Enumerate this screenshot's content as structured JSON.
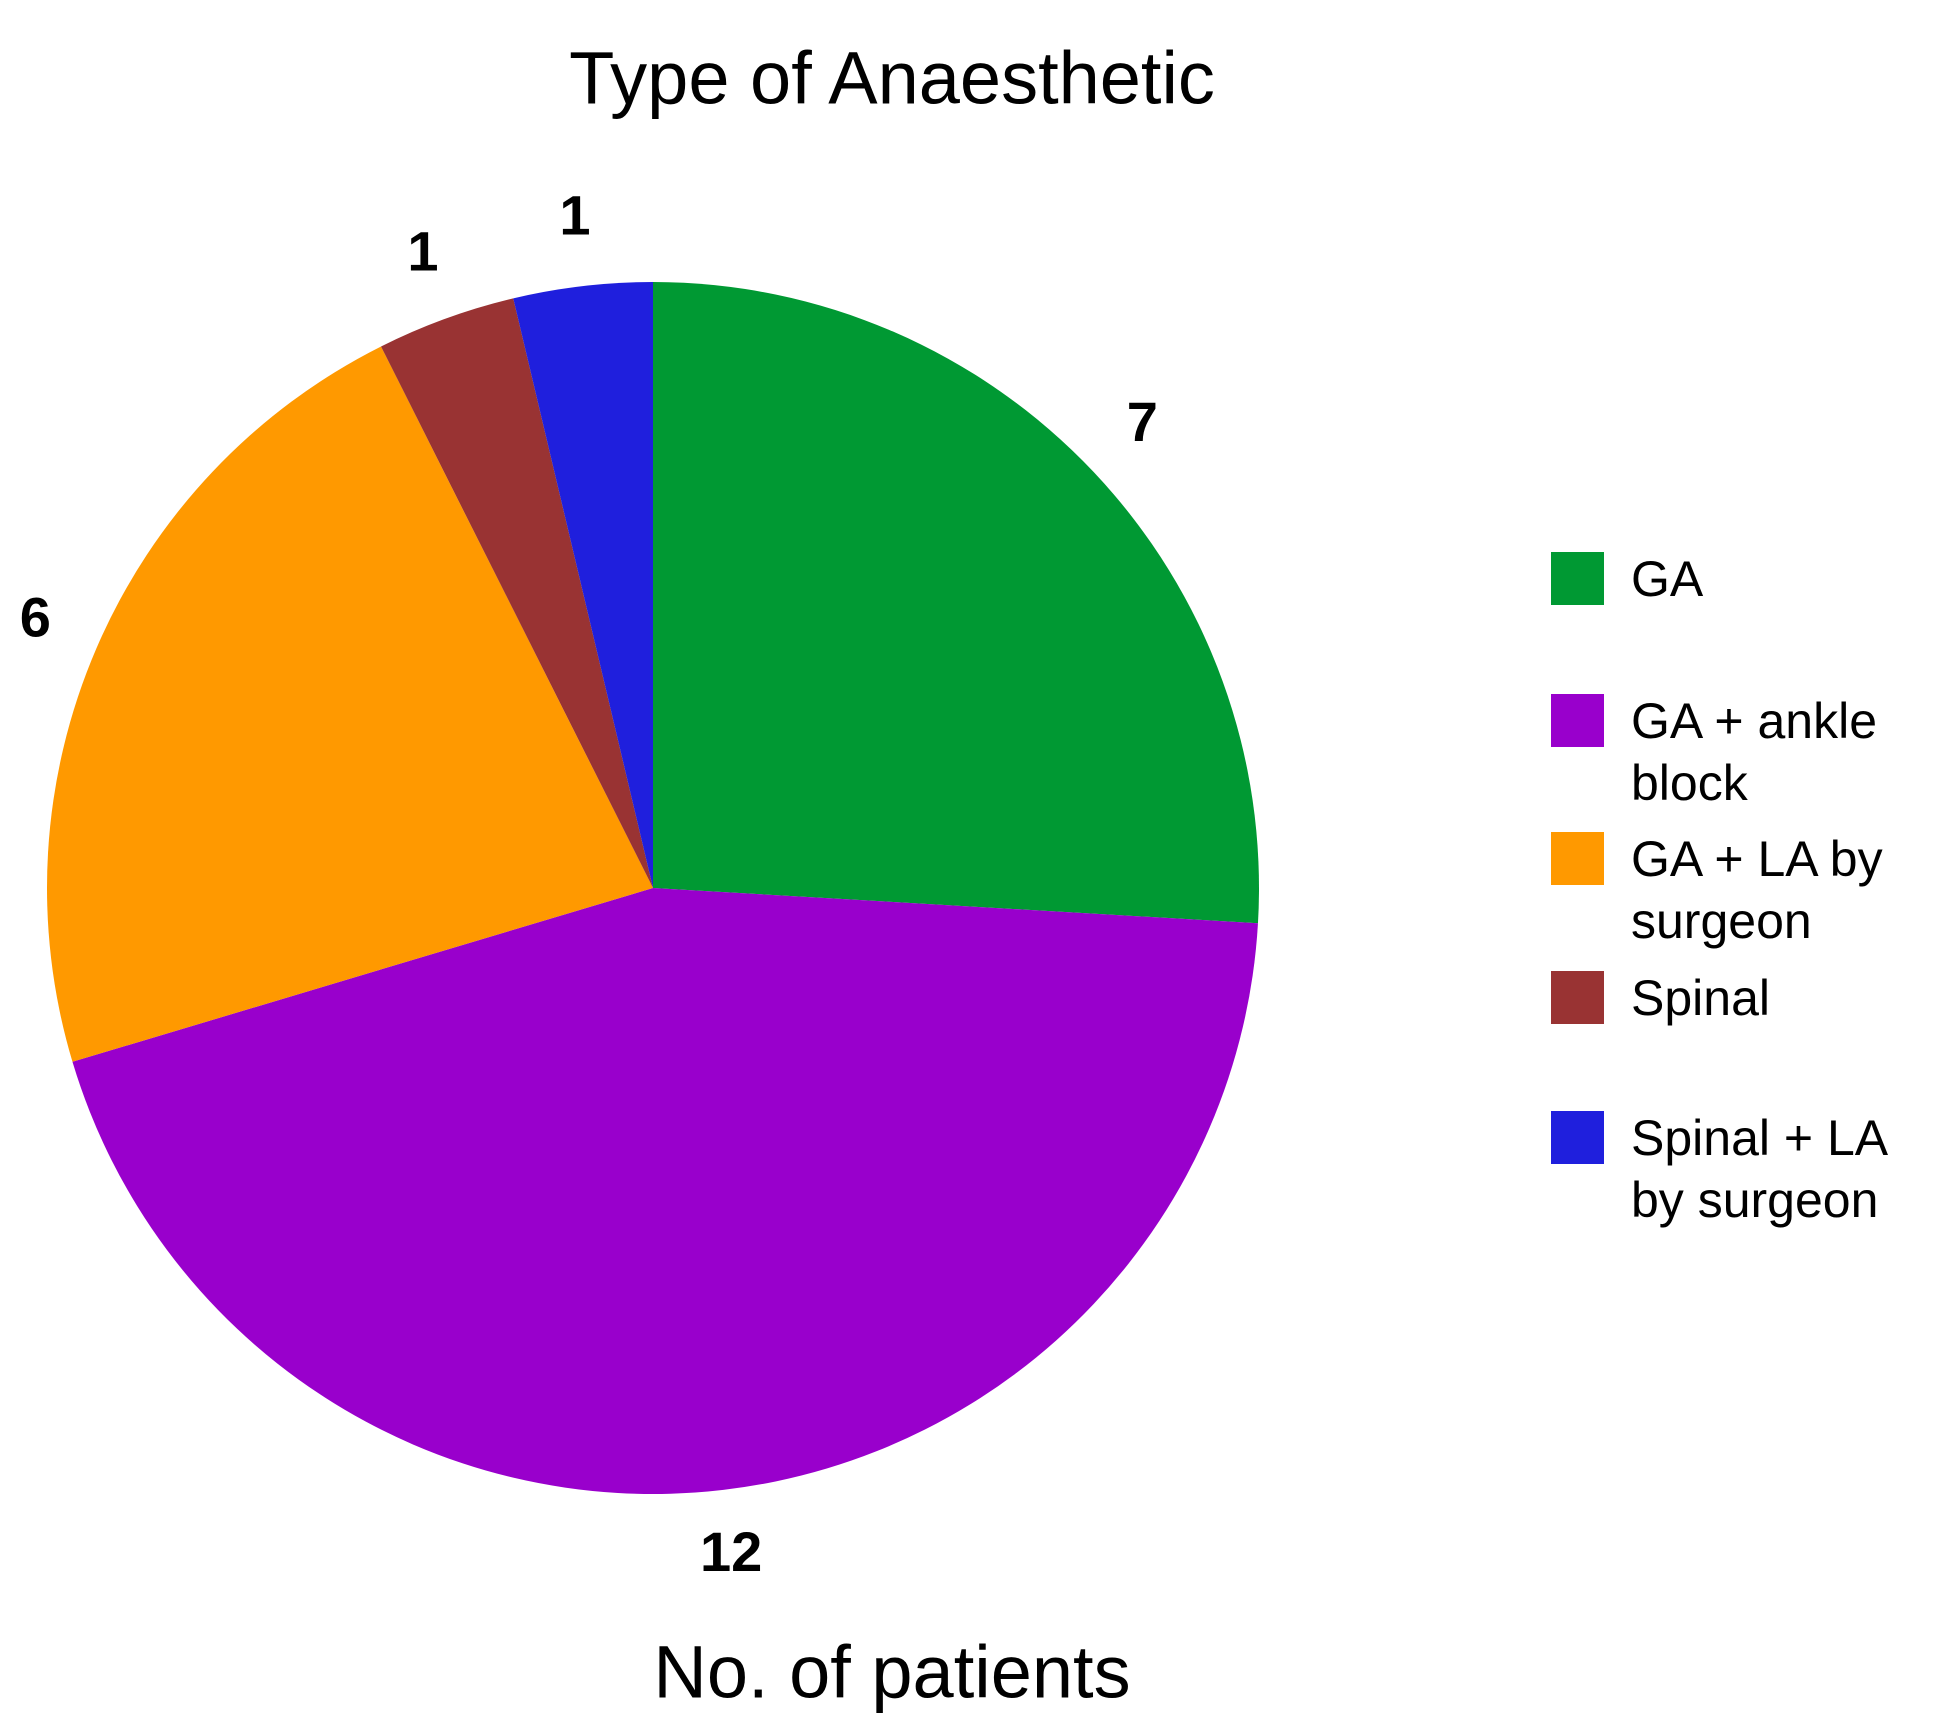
{
  "chart_data": {
    "type": "pie",
    "title": "Type of Anaesthetic",
    "xlabel": "No. of patients",
    "categories": [
      "GA",
      "GA + ankle block",
      "GA + LA by surgeon",
      "Spinal",
      "Spinal + LA by surgeon"
    ],
    "values": [
      7,
      12,
      6,
      1,
      1
    ],
    "colors": [
      "#009933",
      "#9900cc",
      "#ff9900",
      "#993333",
      "#1f1fdd"
    ],
    "legend": "right"
  }
}
